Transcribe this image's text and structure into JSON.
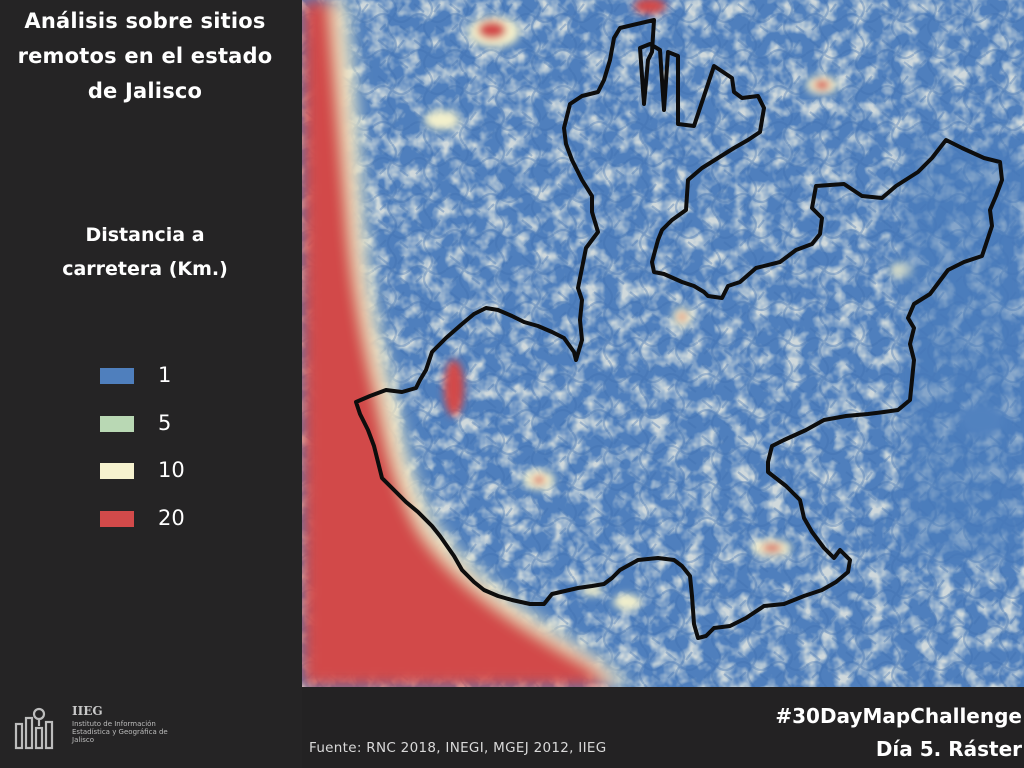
{
  "title_lines": [
    "Análisis sobre sitios",
    "remotos en el estado",
    "de Jalisco"
  ],
  "legend": {
    "title_lines": [
      "Distancia a",
      "carretera (Km.)"
    ],
    "items": [
      {
        "label": "1",
        "color": "#4f7fbd"
      },
      {
        "label": "5",
        "color": "#b9d8b4"
      },
      {
        "label": "10",
        "color": "#f6f2cf"
      },
      {
        "label": "20",
        "color": "#d24a4a"
      }
    ]
  },
  "logo": {
    "name": "IIEG",
    "description": "Instituto de Información Estadística y Geográfica de Jalisco"
  },
  "source": "Fuente: RNC 2018, INEGI, MGEJ 2012, IIEG",
  "hashtag": "#30DayMapChallenge",
  "subtitle": "Día 5. Ráster"
}
